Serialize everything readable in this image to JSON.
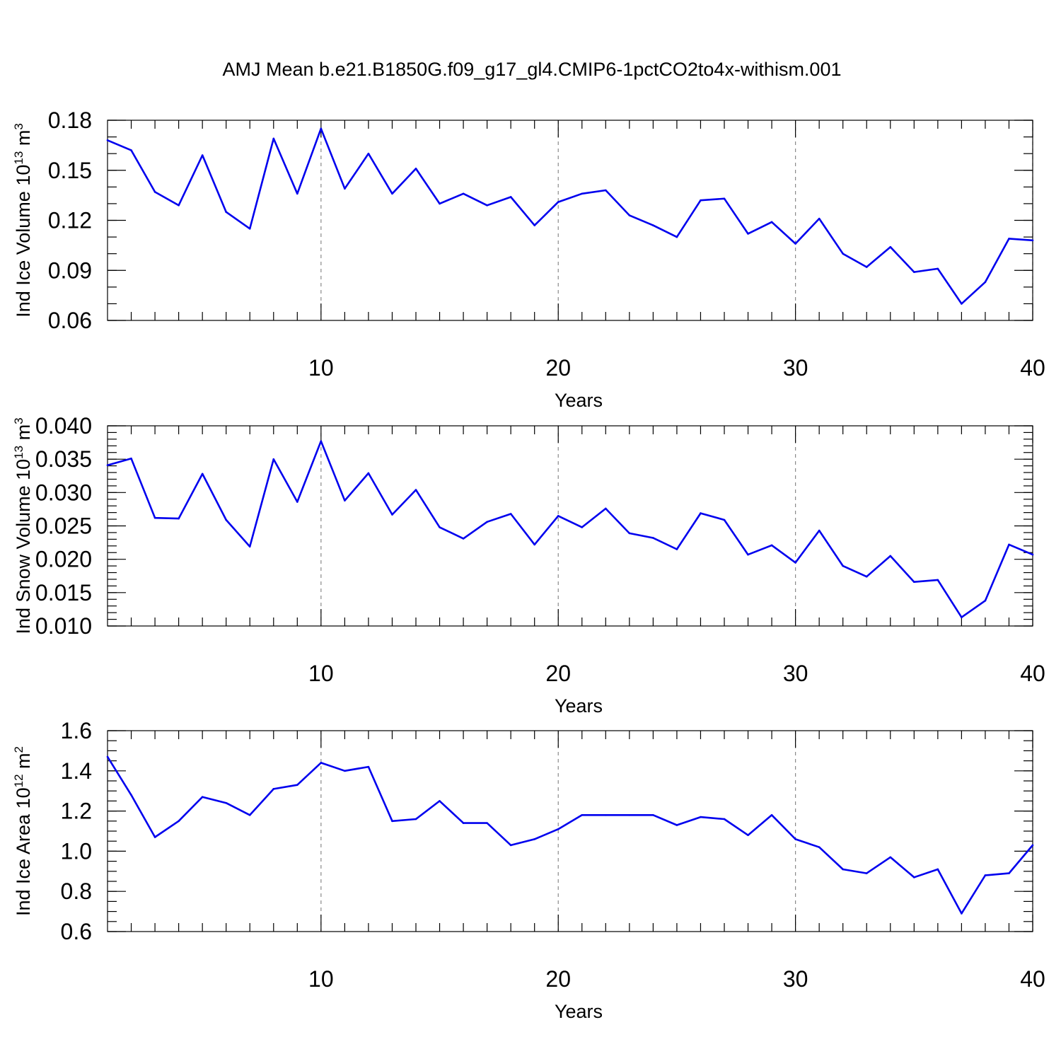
{
  "figure": {
    "title": "AMJ Mean b.e21.B1850G.f09_g17_gl4.CMIP6-1pctCO2to4x-withism.001"
  },
  "chart_data": [
    {
      "type": "line",
      "ylabel": "Ind Ice Volume",
      "yunit_base": "10",
      "yunit_exp": "13",
      "yunit_tail": "m",
      "yunit_tail_exp": "3",
      "xlabel": "Years",
      "xlim": [
        1,
        40
      ],
      "ylim": [
        0.06,
        0.18
      ],
      "xticks": [
        10,
        20,
        30,
        40
      ],
      "xtick_labels": [
        "10",
        "20",
        "30",
        "40"
      ],
      "yticks": [
        0.06,
        0.09,
        0.12,
        0.15,
        0.18
      ],
      "ytick_labels": [
        "0.06",
        "0.09",
        "0.12",
        "0.15",
        "0.18"
      ],
      "y_minor_step": 0.01,
      "grid": "dashed vertical at major x ticks",
      "line_color": "#0000ee",
      "x": [
        1,
        2,
        3,
        4,
        5,
        6,
        7,
        8,
        9,
        10,
        11,
        12,
        13,
        14,
        15,
        16,
        17,
        18,
        19,
        20,
        21,
        22,
        23,
        24,
        25,
        26,
        27,
        28,
        29,
        30,
        31,
        32,
        33,
        34,
        35,
        36,
        37,
        38,
        39,
        40
      ],
      "values": [
        0.168,
        0.162,
        0.137,
        0.129,
        0.159,
        0.125,
        0.115,
        0.169,
        0.136,
        0.175,
        0.139,
        0.16,
        0.136,
        0.151,
        0.13,
        0.136,
        0.129,
        0.134,
        0.117,
        0.131,
        0.136,
        0.138,
        0.123,
        0.117,
        0.11,
        0.132,
        0.133,
        0.112,
        0.119,
        0.106,
        0.121,
        0.1,
        0.092,
        0.104,
        0.089,
        0.091,
        0.07,
        0.083,
        0.109,
        0.108
      ]
    },
    {
      "type": "line",
      "ylabel": "Ind Snow Volume",
      "yunit_base": "10",
      "yunit_exp": "13",
      "yunit_tail": "m",
      "yunit_tail_exp": "3",
      "xlabel": "Years",
      "xlim": [
        1,
        40
      ],
      "ylim": [
        0.01,
        0.04
      ],
      "xticks": [
        10,
        20,
        30,
        40
      ],
      "xtick_labels": [
        "10",
        "20",
        "30",
        "40"
      ],
      "yticks": [
        0.01,
        0.015,
        0.02,
        0.025,
        0.03,
        0.035,
        0.04
      ],
      "ytick_labels": [
        "0.010",
        "0.015",
        "0.020",
        "0.025",
        "0.030",
        "0.035",
        "0.040"
      ],
      "y_minor_step": 0.001,
      "grid": "dashed vertical at major x ticks",
      "line_color": "#0000ee",
      "x": [
        1,
        2,
        3,
        4,
        5,
        6,
        7,
        8,
        9,
        10,
        11,
        12,
        13,
        14,
        15,
        16,
        17,
        18,
        19,
        20,
        21,
        22,
        23,
        24,
        25,
        26,
        27,
        28,
        29,
        30,
        31,
        32,
        33,
        34,
        35,
        36,
        37,
        38,
        39,
        40
      ],
      "values": [
        0.0341,
        0.0351,
        0.0262,
        0.0261,
        0.0328,
        0.0259,
        0.0219,
        0.035,
        0.0286,
        0.0377,
        0.0288,
        0.0329,
        0.0267,
        0.0304,
        0.0248,
        0.0231,
        0.0256,
        0.0268,
        0.0222,
        0.0265,
        0.0248,
        0.0276,
        0.0239,
        0.0232,
        0.0215,
        0.0269,
        0.0259,
        0.0207,
        0.0221,
        0.0195,
        0.0243,
        0.019,
        0.0174,
        0.0205,
        0.0166,
        0.0169,
        0.0113,
        0.0138,
        0.0222,
        0.0207
      ]
    },
    {
      "type": "line",
      "ylabel": "Ind Ice Area",
      "yunit_base": "10",
      "yunit_exp": "12",
      "yunit_tail": "m",
      "yunit_tail_exp": "2",
      "xlabel": "Years",
      "xlim": [
        1,
        40
      ],
      "ylim": [
        0.6,
        1.6
      ],
      "xticks": [
        10,
        20,
        30,
        40
      ],
      "xtick_labels": [
        "10",
        "20",
        "30",
        "40"
      ],
      "yticks": [
        0.6,
        0.8,
        1.0,
        1.2,
        1.4,
        1.6
      ],
      "ytick_labels": [
        "0.6",
        "0.8",
        "1.0",
        "1.2",
        "1.4",
        "1.6"
      ],
      "y_minor_step": 0.05,
      "grid": "dashed vertical at major x ticks",
      "line_color": "#0000ee",
      "x": [
        1,
        2,
        3,
        4,
        5,
        6,
        7,
        8,
        9,
        10,
        11,
        12,
        13,
        14,
        15,
        16,
        17,
        18,
        19,
        20,
        21,
        22,
        23,
        24,
        25,
        26,
        27,
        28,
        29,
        30,
        31,
        32,
        33,
        34,
        35,
        36,
        37,
        38,
        39,
        40
      ],
      "values": [
        1.47,
        1.28,
        1.07,
        1.15,
        1.27,
        1.24,
        1.18,
        1.31,
        1.33,
        1.44,
        1.4,
        1.42,
        1.15,
        1.16,
        1.25,
        1.14,
        1.14,
        1.03,
        1.06,
        1.11,
        1.18,
        1.18,
        1.18,
        1.18,
        1.13,
        1.17,
        1.16,
        1.08,
        1.18,
        1.06,
        1.02,
        0.91,
        0.89,
        0.97,
        0.87,
        0.91,
        0.69,
        0.88,
        0.89,
        1.03
      ]
    }
  ]
}
